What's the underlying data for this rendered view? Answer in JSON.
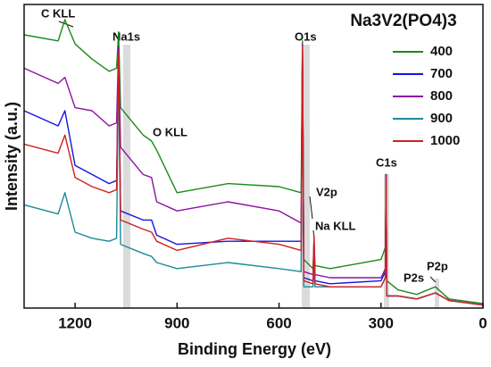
{
  "chart_data": {
    "type": "line",
    "xlabel": "Binding Energy (eV)",
    "ylabel": "Intensity (a.u.)",
    "legend_title": "Na3V2(PO4)3",
    "legend_position": "upper right",
    "xlim": [
      1350,
      0
    ],
    "xticks": [
      1200,
      900,
      600,
      300,
      0
    ],
    "ylim": [
      0,
      100
    ],
    "x": [
      1350,
      1250,
      1230,
      1200,
      1150,
      1100,
      1078,
      1072,
      1066,
      1000,
      975,
      960,
      900,
      750,
      600,
      535,
      531,
      527,
      500,
      497,
      494,
      450,
      300,
      287,
      285,
      283,
      250,
      195,
      140,
      100,
      0
    ],
    "series": [
      {
        "name": "400",
        "color": "#1a8a1a",
        "values": [
          90,
          88,
          95,
          87,
          82,
          78,
          79,
          91,
          66,
          57,
          55,
          52,
          38,
          41,
          40,
          38,
          88,
          16,
          13,
          22,
          14,
          13,
          16,
          20,
          44,
          9,
          6,
          4.5,
          7,
          3,
          1.5
        ]
      },
      {
        "name": "700",
        "color": "#1414e0",
        "values": [
          65,
          60,
          65,
          47,
          44,
          41,
          42,
          85,
          32,
          29,
          29,
          24,
          21,
          22,
          22,
          22,
          87,
          10,
          9,
          16,
          9,
          8,
          9,
          12,
          44,
          4,
          4,
          3,
          5,
          2.5,
          1
        ]
      },
      {
        "name": "800",
        "color": "#8a14a0",
        "values": [
          79,
          74,
          76,
          66,
          65,
          60,
          61,
          86,
          53,
          44,
          43,
          35,
          32,
          35,
          32,
          28,
          87,
          12,
          11,
          23,
          11,
          10,
          10,
          13,
          44,
          4,
          4,
          3,
          5,
          2.5,
          1
        ]
      },
      {
        "name": "900",
        "color": "#1a8a9a",
        "values": [
          34,
          31,
          38,
          25,
          23,
          22,
          23,
          81,
          21,
          18,
          17,
          15,
          13,
          15,
          13,
          12,
          85,
          7,
          7,
          13,
          7,
          7,
          7,
          10,
          43,
          4,
          4,
          3,
          5,
          2.5,
          1
        ]
      },
      {
        "name": "1000",
        "color": "#d02020",
        "values": [
          54,
          51,
          57,
          43,
          40,
          38,
          39,
          84,
          29,
          26,
          25,
          22,
          19,
          23,
          21,
          19,
          86,
          9,
          8,
          24,
          8,
          7,
          7,
          10,
          43,
          4,
          4,
          3,
          5,
          2.5,
          1
        ]
      }
    ],
    "annotations": [
      "C KLL",
      "Na1s",
      "O KLL",
      "O1s",
      "V2p",
      "Na KLL",
      "C1s",
      "P2s",
      "P2p"
    ]
  }
}
